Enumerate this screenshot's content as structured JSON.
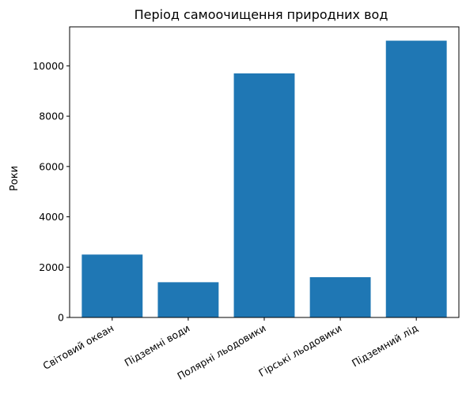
{
  "chart_data": {
    "type": "bar",
    "title": "Період самоочищення природних вод",
    "xlabel": "",
    "ylabel": "Роки",
    "categories": [
      "Світовий океан",
      "Підземні води",
      "Полярні льодовики",
      "Гірські льодовики",
      "Підземний лід"
    ],
    "values": [
      2500,
      1400,
      9700,
      1600,
      11000
    ],
    "ylim": [
      0,
      11550
    ],
    "yticks": [
      0,
      2000,
      4000,
      6000,
      8000,
      10000
    ],
    "grid": false,
    "legend": "none",
    "bar_color": "#1f77b4"
  }
}
